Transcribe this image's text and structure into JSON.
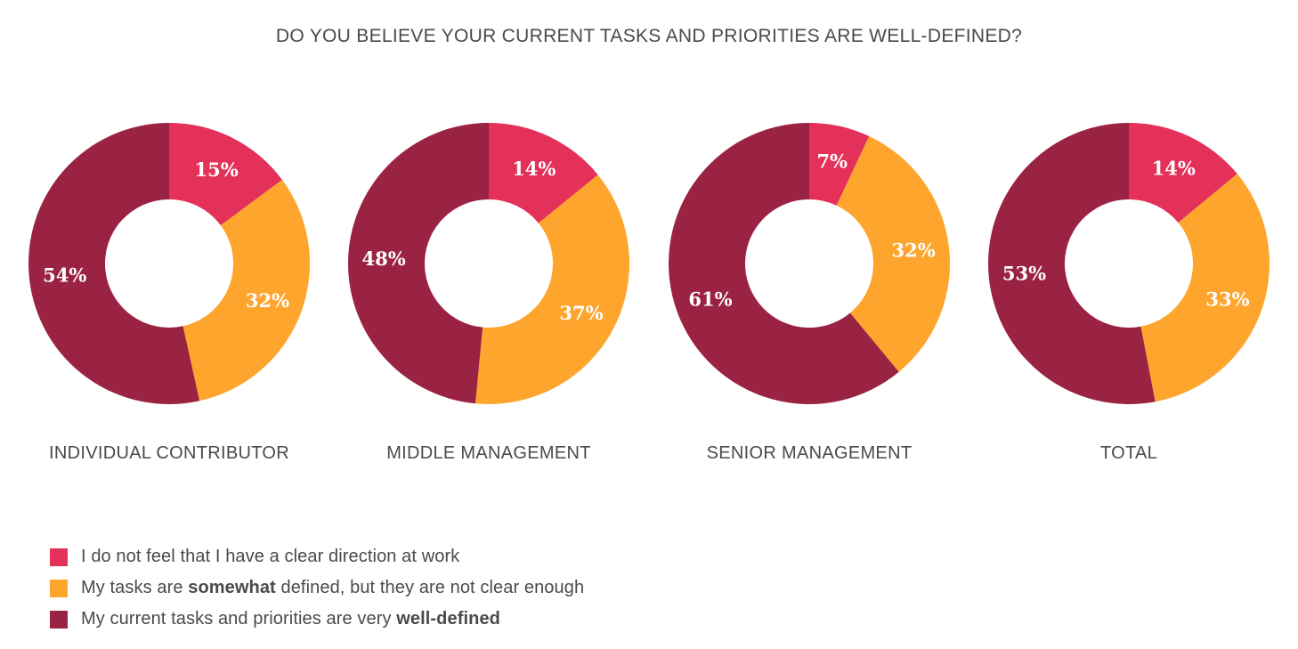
{
  "title": "DO YOU BELIEVE YOUR CURRENT TASKS AND PRIORITIES ARE WELL-DEFINED?",
  "colors": {
    "not_clear": "#e3315a",
    "somewhat": "#fea52d",
    "well_defined": "#9a2343"
  },
  "legend": [
    {
      "parts": [
        {
          "text": "I do not feel that I have a clear direction at work",
          "bold": false
        }
      ],
      "color_key": "not_clear"
    },
    {
      "parts": [
        {
          "text": "My tasks are ",
          "bold": false
        },
        {
          "text": "somewhat",
          "bold": true
        },
        {
          "text": " defined, but they are not clear enough",
          "bold": false
        }
      ],
      "color_key": "somewhat"
    },
    {
      "parts": [
        {
          "text": "My current tasks and priorities are very ",
          "bold": false
        },
        {
          "text": "well-defined",
          "bold": true
        }
      ],
      "color_key": "well_defined"
    }
  ],
  "chart_data": [
    {
      "type": "pie",
      "category": "INDIVIDUAL CONTRIBUTOR",
      "slices": [
        {
          "legend_index": 0,
          "color_key": "not_clear",
          "value": 15,
          "label": "15%"
        },
        {
          "legend_index": 1,
          "color_key": "somewhat",
          "value": 32,
          "label": "32%"
        },
        {
          "legend_index": 2,
          "color_key": "well_defined",
          "value": 54,
          "label": "54%"
        }
      ]
    },
    {
      "type": "pie",
      "category": "MIDDLE MANAGEMENT",
      "slices": [
        {
          "legend_index": 0,
          "color_key": "not_clear",
          "value": 14,
          "label": "14%"
        },
        {
          "legend_index": 1,
          "color_key": "somewhat",
          "value": 37,
          "label": "37%"
        },
        {
          "legend_index": 2,
          "color_key": "well_defined",
          "value": 48,
          "label": "48%"
        }
      ]
    },
    {
      "type": "pie",
      "category": "SENIOR MANAGEMENT",
      "slices": [
        {
          "legend_index": 0,
          "color_key": "not_clear",
          "value": 7,
          "label": "7%"
        },
        {
          "legend_index": 1,
          "color_key": "somewhat",
          "value": 32,
          "label": "32%"
        },
        {
          "legend_index": 2,
          "color_key": "well_defined",
          "value": 61,
          "label": "61%"
        }
      ]
    },
    {
      "type": "pie",
      "category": "TOTAL",
      "slices": [
        {
          "legend_index": 0,
          "color_key": "not_clear",
          "value": 14,
          "label": "14%"
        },
        {
          "legend_index": 1,
          "color_key": "somewhat",
          "value": 33,
          "label": "33%"
        },
        {
          "legend_index": 2,
          "color_key": "well_defined",
          "value": 53,
          "label": "53%"
        }
      ]
    }
  ]
}
